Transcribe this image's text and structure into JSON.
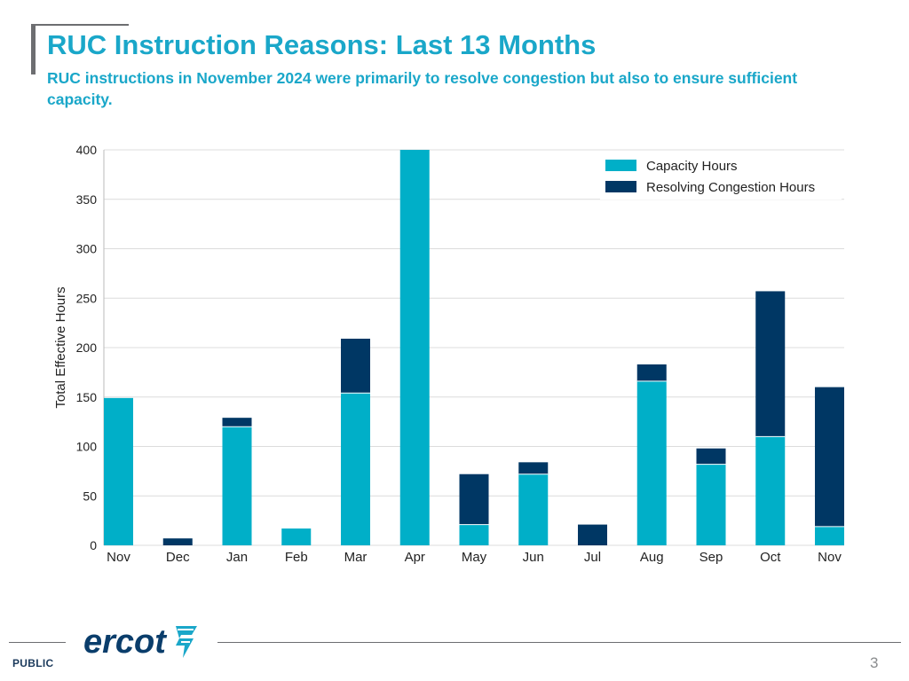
{
  "header": {
    "title": "RUC Instruction Reasons: Last 13 Months",
    "subtitle": "RUC instructions in November 2024 were primarily to resolve congestion but also to ensure sufficient capacity."
  },
  "footer": {
    "classification": "PUBLIC",
    "page_number": "3",
    "logo_text": "ercot"
  },
  "colors": {
    "accent": "#1aa7c9",
    "capacity": "#00afc8",
    "congestion": "#003764",
    "grid": "#dcdcdc",
    "logo": "#0a3d6b"
  },
  "chart_data": {
    "type": "bar",
    "stacked": true,
    "title": "",
    "xlabel": "",
    "ylabel": "Total Effective Hours",
    "ylim": [
      0,
      400
    ],
    "yticks": [
      0,
      50,
      100,
      150,
      200,
      250,
      300,
      350,
      400
    ],
    "grid": true,
    "legend_position": "top-right",
    "categories": [
      "Nov",
      "Dec",
      "Jan",
      "Feb",
      "Mar",
      "Apr",
      "May",
      "Jun",
      "Jul",
      "Aug",
      "Sep",
      "Oct",
      "Nov"
    ],
    "series": [
      {
        "name": "Capacity Hours",
        "color": "#00afc8",
        "values": [
          149,
          0,
          120,
          17,
          154,
          400,
          21,
          72,
          0,
          166,
          82,
          110,
          19
        ]
      },
      {
        "name": "Resolving Congestion Hours",
        "color": "#003764",
        "values": [
          0,
          7,
          9,
          0,
          55,
          0,
          51,
          12,
          21,
          17,
          16,
          147,
          141
        ]
      }
    ]
  }
}
